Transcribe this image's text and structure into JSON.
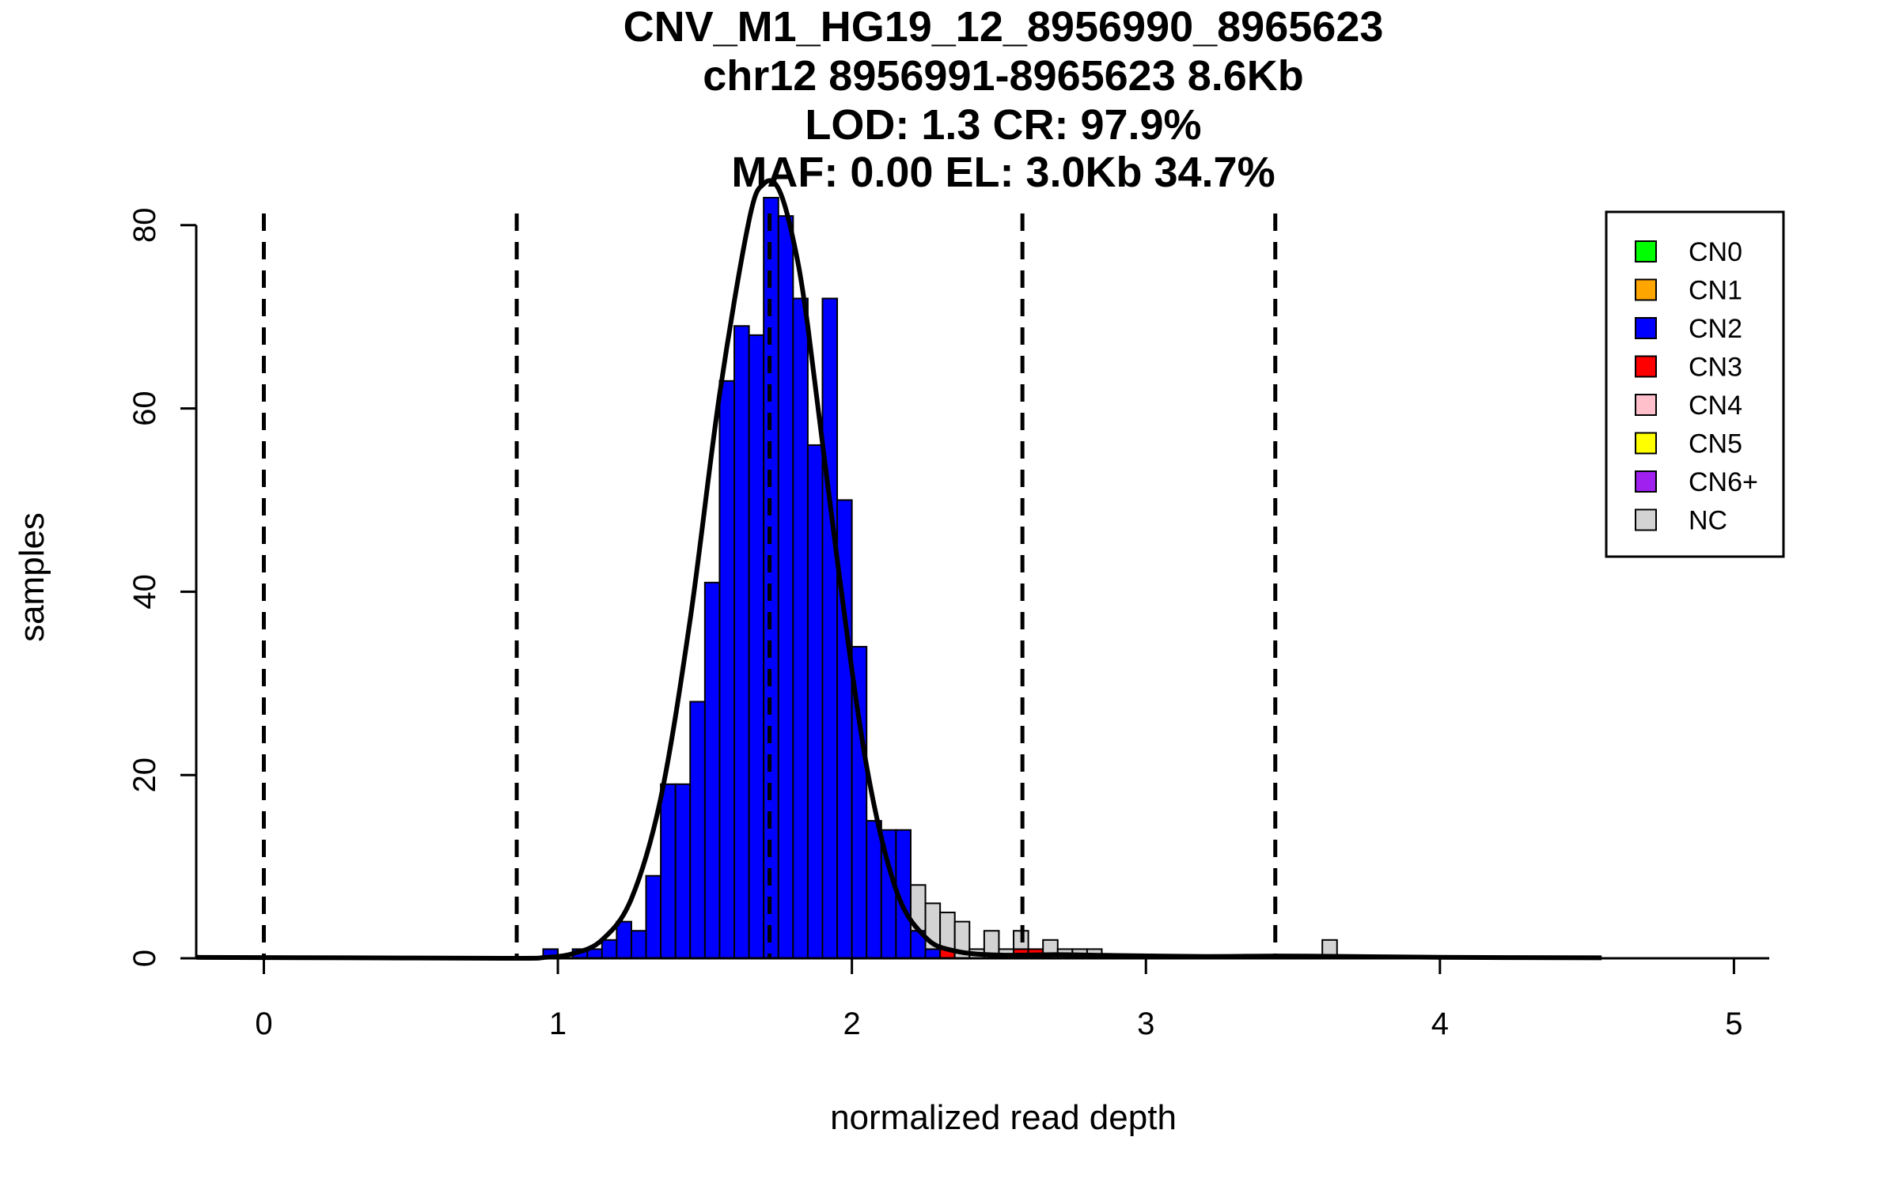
{
  "chart_data": {
    "type": "bar",
    "title_lines": [
      "CNV_M1_HG19_12_8956990_8965623",
      "chr12 8956991-8965623 8.6Kb",
      "LOD: 1.3 CR: 97.9%",
      "MAF: 0.00 EL: 3.0Kb 34.7%"
    ],
    "xlabel": "normalized read depth",
    "ylabel": "samples",
    "xlim": [
      -0.23,
      5.12
    ],
    "ylim": [
      0,
      83
    ],
    "x_ticks": [
      0,
      1,
      2,
      3,
      4,
      5
    ],
    "y_ticks": [
      0,
      20,
      40,
      60,
      80
    ],
    "bin_width": 0.05,
    "grid": false,
    "legend_position": "top-right",
    "legend": [
      {
        "label": "CN0",
        "color": "#00ff00"
      },
      {
        "label": "CN1",
        "color": "#ffa500"
      },
      {
        "label": "CN2",
        "color": "#0000ff"
      },
      {
        "label": "CN3",
        "color": "#ff0000"
      },
      {
        "label": "CN4",
        "color": "#ffc0cb"
      },
      {
        "label": "CN5",
        "color": "#ffff00"
      },
      {
        "label": "CN6+",
        "color": "#a020f0"
      },
      {
        "label": "NC",
        "color": "#d3d3d3"
      }
    ],
    "series": [
      {
        "name": "CN2",
        "color": "#0000ff",
        "bins": [
          [
            0.95,
            1
          ],
          [
            1.05,
            1
          ],
          [
            1.1,
            1
          ],
          [
            1.15,
            2
          ],
          [
            1.2,
            4
          ],
          [
            1.25,
            3
          ],
          [
            1.3,
            9
          ],
          [
            1.35,
            19
          ],
          [
            1.4,
            19
          ],
          [
            1.45,
            28
          ],
          [
            1.5,
            41
          ],
          [
            1.55,
            63
          ],
          [
            1.6,
            69
          ],
          [
            1.65,
            68
          ],
          [
            1.7,
            83
          ],
          [
            1.75,
            81
          ],
          [
            1.8,
            72
          ],
          [
            1.85,
            56
          ],
          [
            1.9,
            72
          ],
          [
            1.95,
            50
          ],
          [
            2.0,
            34
          ],
          [
            2.05,
            15
          ],
          [
            2.1,
            14
          ],
          [
            2.15,
            14
          ],
          [
            2.2,
            3
          ],
          [
            2.25,
            1
          ]
        ]
      },
      {
        "name": "CN3",
        "color": "#ff0000",
        "bins": [
          [
            2.3,
            1
          ],
          [
            2.55,
            1
          ],
          [
            2.6,
            1
          ]
        ]
      },
      {
        "name": "NC",
        "color": "#d3d3d3",
        "bins": [
          [
            2.2,
            5
          ],
          [
            2.25,
            5
          ],
          [
            2.3,
            4
          ],
          [
            2.35,
            4
          ],
          [
            2.4,
            1
          ],
          [
            2.45,
            3
          ],
          [
            2.5,
            1
          ],
          [
            2.55,
            2
          ],
          [
            2.65,
            2
          ],
          [
            2.7,
            1
          ],
          [
            2.75,
            1
          ],
          [
            2.8,
            1
          ],
          [
            3.6,
            2
          ]
        ]
      }
    ],
    "density_curve": {
      "color": "#000000",
      "x": [
        -0.23,
        0.3,
        0.86,
        0.95,
        1.05,
        1.15,
        1.25,
        1.35,
        1.45,
        1.55,
        1.65,
        1.7,
        1.75,
        1.8,
        1.85,
        1.95,
        2.05,
        2.15,
        2.25,
        2.35,
        2.5,
        2.7,
        2.9,
        3.2,
        3.45,
        3.7,
        4.0,
        4.55
      ],
      "y": [
        0.1,
        0.05,
        0.0,
        0.08,
        0.5,
        2.0,
        6.5,
        17.5,
        37.0,
        61.5,
        80.5,
        84.5,
        84.0,
        78.5,
        69.0,
        43.5,
        21.0,
        7.5,
        2.3,
        0.8,
        0.35,
        0.4,
        0.3,
        0.2,
        0.25,
        0.2,
        0.1,
        0.05
      ]
    },
    "cutoff_lines": [
      0,
      0.86,
      1.72,
      2.58,
      3.44
    ]
  }
}
